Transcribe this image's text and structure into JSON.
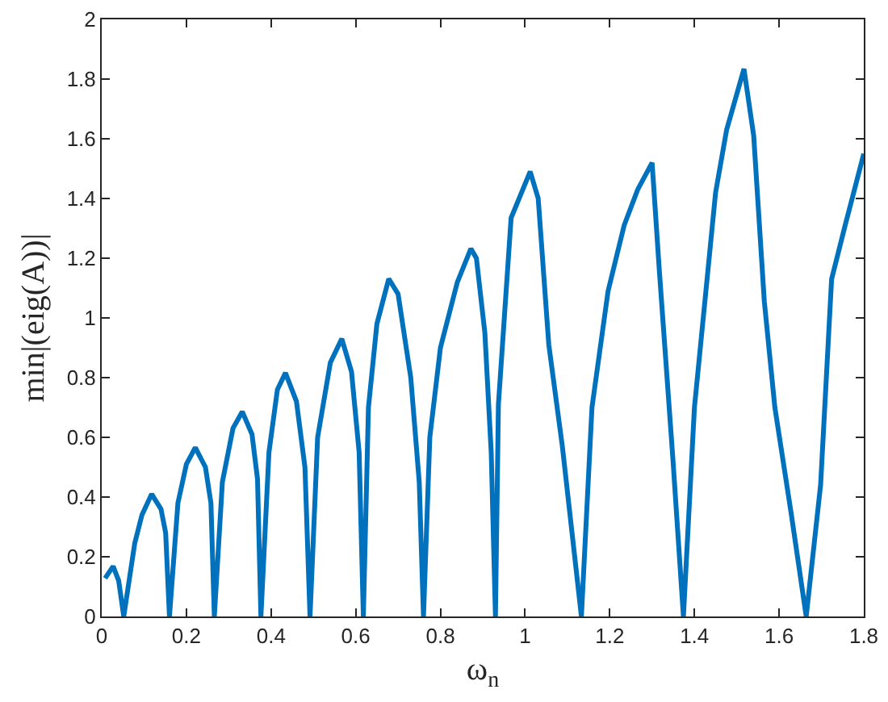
{
  "chart_data": {
    "type": "line",
    "xlabel": "ω$_{n}$",
    "ylabel": "min|(eig(A))|",
    "xlim": [
      0,
      1.8
    ],
    "ylim": [
      0,
      2
    ],
    "xticks": [
      0,
      0.2,
      0.4,
      0.6,
      0.8,
      1,
      1.2,
      1.4,
      1.6,
      1.8
    ],
    "yticks": [
      0,
      0.2,
      0.4,
      0.6,
      0.8,
      1,
      1.2,
      1.4,
      1.6,
      1.8,
      2
    ],
    "marker": "none",
    "line_style": "solid",
    "series": [
      {
        "color": "#0072bd",
        "x": [
          0.008,
          0.027,
          0.04,
          0.052,
          0.078,
          0.095,
          0.118,
          0.14,
          0.151,
          0.16,
          0.18,
          0.2,
          0.221,
          0.245,
          0.258,
          0.266,
          0.285,
          0.31,
          0.332,
          0.355,
          0.368,
          0.376,
          0.395,
          0.415,
          0.434,
          0.46,
          0.48,
          0.492,
          0.51,
          0.54,
          0.567,
          0.59,
          0.608,
          0.618,
          0.63,
          0.65,
          0.678,
          0.7,
          0.73,
          0.75,
          0.76,
          0.775,
          0.8,
          0.84,
          0.872,
          0.885,
          0.905,
          0.92,
          0.93,
          0.937,
          0.967,
          1.012,
          1.031,
          1.056,
          1.088,
          1.133,
          1.158,
          1.196,
          1.234,
          1.266,
          1.3,
          1.317,
          1.349,
          1.374,
          1.4,
          1.425,
          1.45,
          1.476,
          1.517,
          1.54,
          1.565,
          1.59,
          1.628,
          1.664,
          1.698,
          1.724,
          1.756,
          1.8
        ],
        "values": [
          0.128,
          0.168,
          0.12,
          0,
          0.245,
          0.34,
          0.41,
          0.36,
          0.28,
          0,
          0.38,
          0.51,
          0.566,
          0.5,
          0.38,
          0,
          0.45,
          0.63,
          0.686,
          0.61,
          0.46,
          0,
          0.55,
          0.76,
          0.816,
          0.72,
          0.5,
          0,
          0.6,
          0.85,
          0.93,
          0.82,
          0.55,
          0,
          0.7,
          0.98,
          1.131,
          1.08,
          0.8,
          0.45,
          0,
          0.6,
          0.9,
          1.12,
          1.232,
          1.2,
          0.95,
          0.55,
          0,
          0.71,
          1.335,
          1.49,
          1.4,
          0.91,
          0.57,
          0,
          0.7,
          1.09,
          1.31,
          1.43,
          1.52,
          1.16,
          0.53,
          0,
          0.7,
          1.06,
          1.42,
          1.63,
          1.834,
          1.61,
          1.056,
          0.7,
          0.35,
          0,
          0.44,
          1.13,
          1.31,
          1.55
        ]
      }
    ]
  }
}
